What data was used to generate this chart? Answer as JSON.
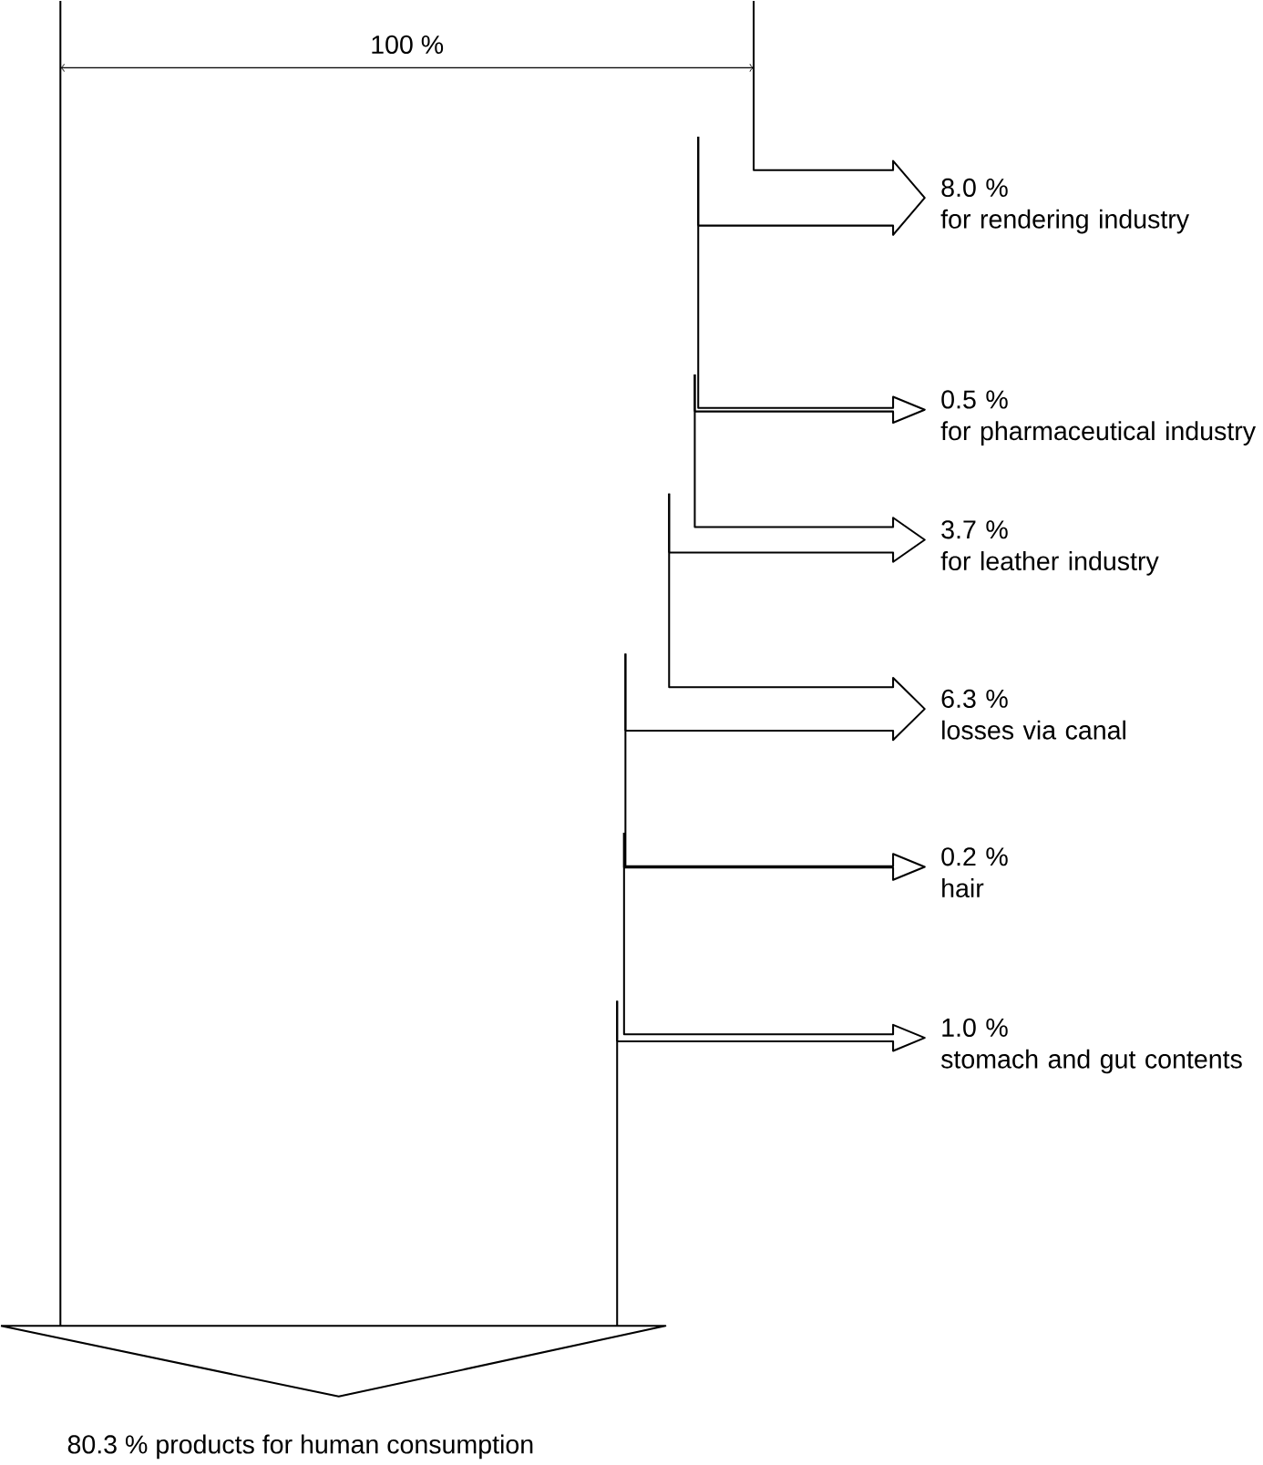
{
  "chart_data": {
    "type": "other",
    "categories": [
      "for rendering industry",
      "for pharmaceutical industry",
      "for leather industry",
      "losses via canal",
      "hair",
      "stomach and gut contents",
      "products for human consumption"
    ],
    "values": [
      8.0,
      0.5,
      3.7,
      6.3,
      0.2,
      1.0,
      80.3
    ],
    "value_labels": [
      "8.0 %",
      "0.5 %",
      "3.7 %",
      "6.3 %",
      "0.2 %",
      "1.0 %",
      "80.3 %"
    ],
    "annotations": [
      "100 %"
    ]
  }
}
